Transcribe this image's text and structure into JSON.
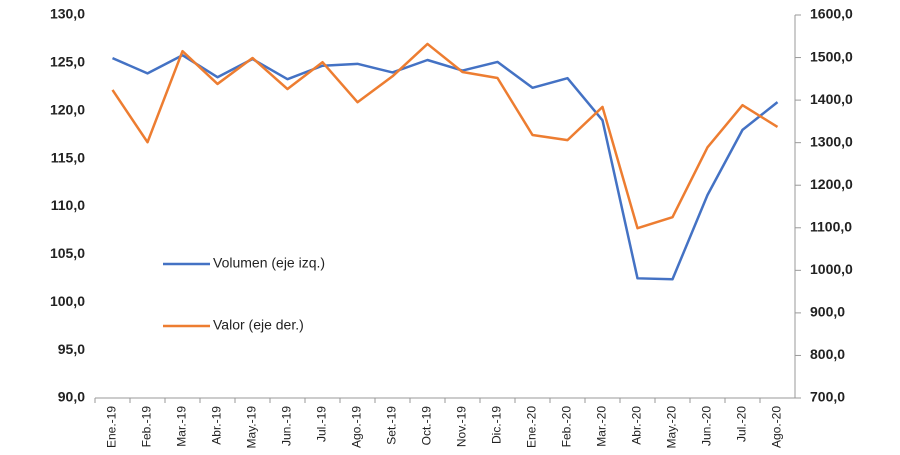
{
  "chart_data": {
    "type": "line",
    "categories": [
      "Ene.-19",
      "Feb.-19",
      "Mar.-19",
      "Abr.-19",
      "May.-19",
      "Jun.-19",
      "Jul.-19",
      "Ago.-19",
      "Set.-19",
      "Oct.-19",
      "Nov.-19",
      "Dic.-19",
      "Ene.-20",
      "Feb.-20",
      "Mar.-20",
      "Abr.-20",
      "May.-20",
      "Jun.-20",
      "Jul.-20",
      "Ago.-20"
    ],
    "series": [
      {
        "name": "Volumen (eje izq.)",
        "color": "#4472c4",
        "values": [
          125.5,
          123.9,
          125.8,
          123.5,
          125.4,
          123.3,
          124.7,
          124.9,
          124.0,
          125.3,
          124.2,
          125.1,
          122.4,
          123.4,
          119.0,
          102.5,
          102.4,
          111.2,
          118.0,
          120.9
        ]
      },
      {
        "name": "Valor (eje der.)",
        "color": "#ed7d31",
        "axis": "y2",
        "values": [
          1424,
          1301,
          1515,
          1438,
          1499,
          1426,
          1489,
          1395,
          1456,
          1532,
          1466,
          1452,
          1318,
          1306,
          1384,
          1099,
          1125,
          1289,
          1388,
          1337
        ]
      }
    ],
    "ylim": [
      90,
      130
    ],
    "yticks": [
      {
        "value": 90,
        "label": "90,0"
      },
      {
        "value": 95,
        "label": "95,0"
      },
      {
        "value": 100,
        "label": "100,0"
      },
      {
        "value": 105,
        "label": "105,0"
      },
      {
        "value": 110,
        "label": "110,0"
      },
      {
        "value": 115,
        "label": "115,0"
      },
      {
        "value": 120,
        "label": "120,0"
      },
      {
        "value": 125,
        "label": "125,0"
      },
      {
        "value": 130,
        "label": "130,0"
      }
    ],
    "y2lim": [
      700,
      1600
    ],
    "y2ticks": [
      {
        "value": 700,
        "label": "700,0"
      },
      {
        "value": 800,
        "label": "800,0"
      },
      {
        "value": 900,
        "label": "900,0"
      },
      {
        "value": 1000,
        "label": "1000,0"
      },
      {
        "value": 1100,
        "label": "1100,0"
      },
      {
        "value": 1200,
        "label": "1200,0"
      },
      {
        "value": 1300,
        "label": "1300,0"
      },
      {
        "value": 1400,
        "label": "1400,0"
      },
      {
        "value": 1500,
        "label": "1500,0"
      },
      {
        "value": 1600,
        "label": "1600,0"
      }
    ],
    "grid": false,
    "legend": "center-left"
  }
}
